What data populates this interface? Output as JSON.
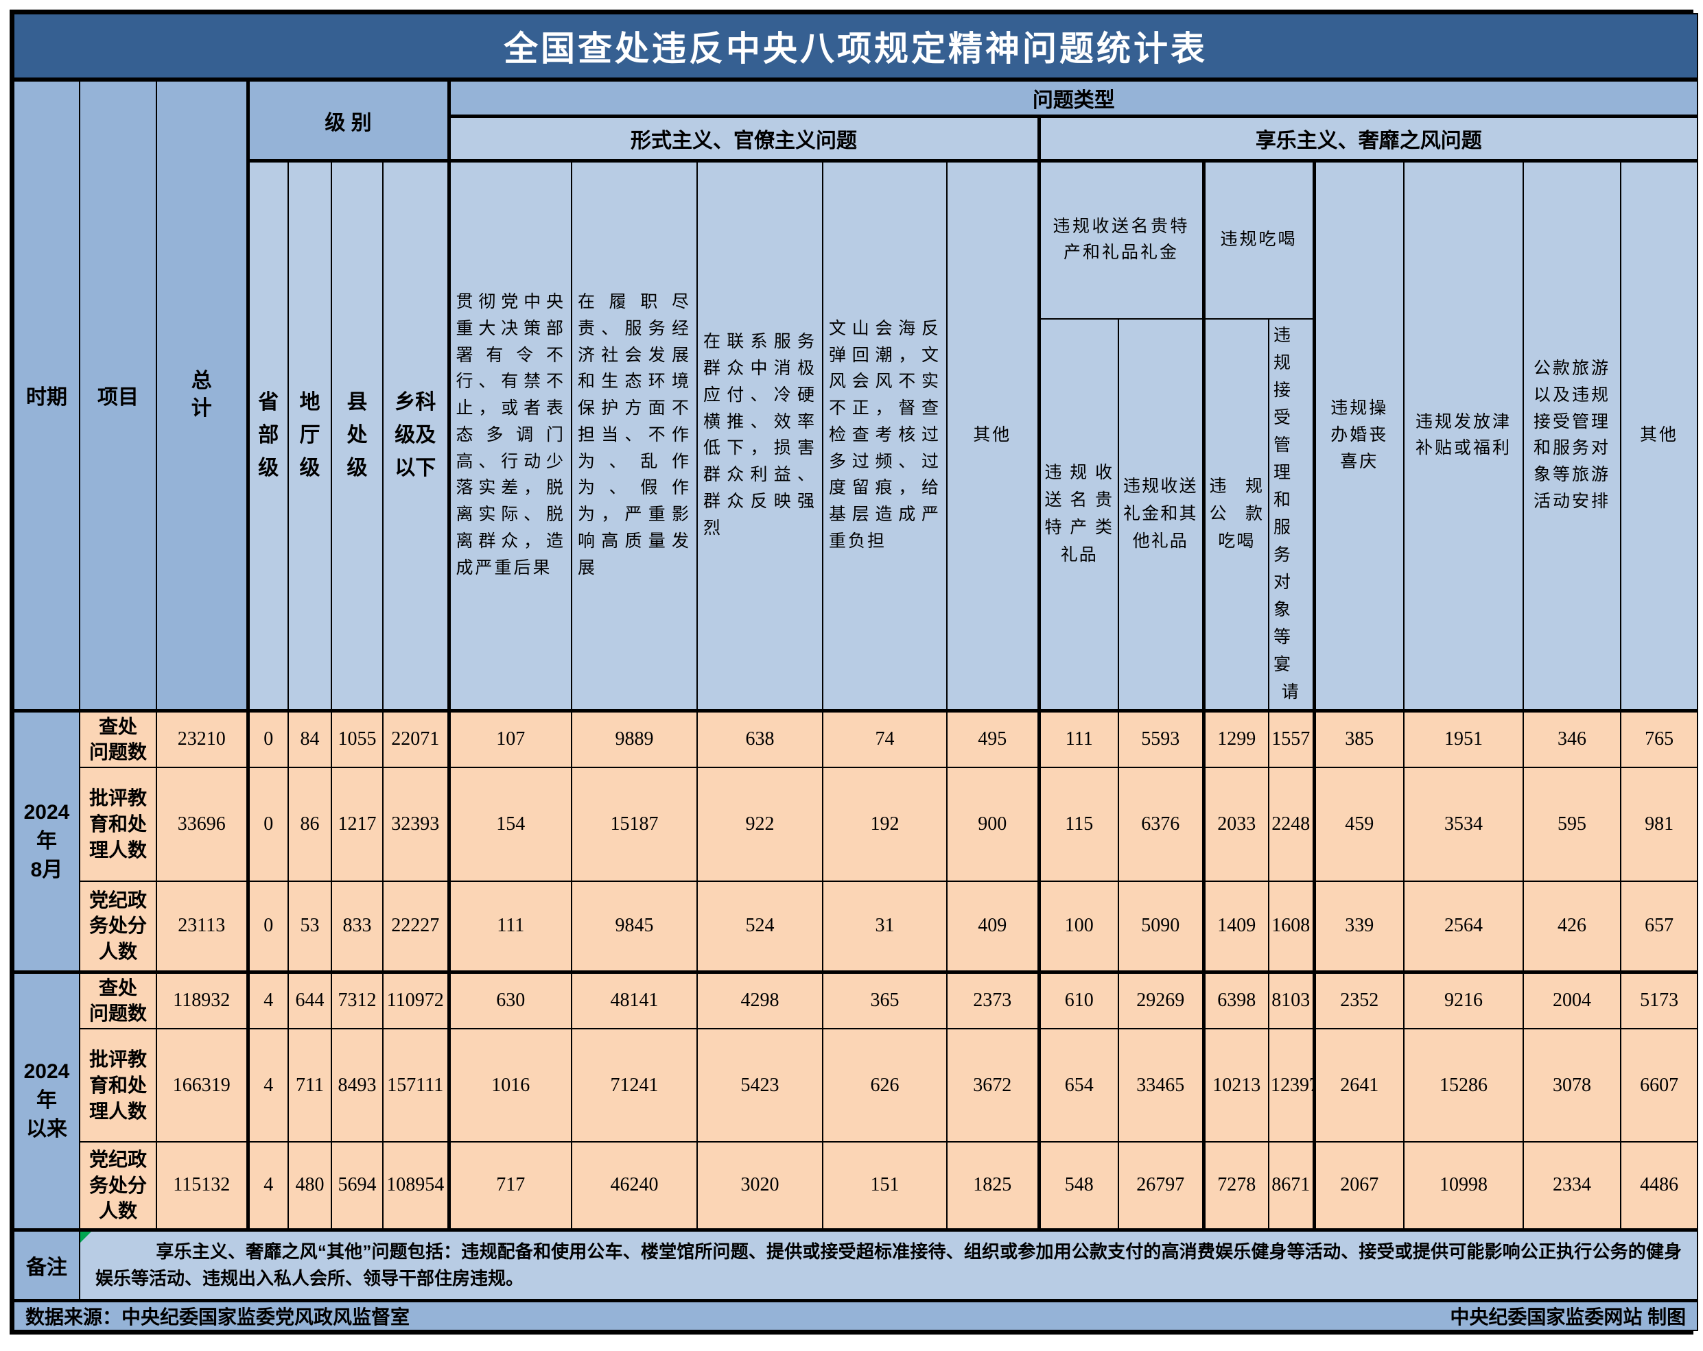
{
  "title": "全国查处违反中央八项规定精神问题统计表",
  "header": {
    "period": "时期",
    "item": "项目",
    "total": "总\n计",
    "level": "级 别",
    "problem_type": "问题类型",
    "group1": "形式主义、官僚主义问题",
    "group2": "享乐主义、奢靡之风问题",
    "levels": [
      "省\n部\n级",
      "地\n厅\n级",
      "县\n处\n级",
      "乡科\n级及\n以下"
    ],
    "g1cols": [
      "贯彻党中央重大决策部署有令不行、有禁不止，或者表态多调门高、行动少落实差，脱离实际、脱离群众，造成严重后果",
      "在履职尽责、服务经济社会发展和生态环境保护方面不担当、不作为、乱作为、假作为，严重影响高质量发展",
      "在联系服务群众中消极应付、冷硬横推、效率低下，损害群众利益、群众反映强烈",
      "文山会海反弹回潮，文风会风不实不正，督查检查考核过多过频、过度留痕，给基层造成严重负担",
      "其他"
    ],
    "g2top": [
      "违规收送名贵特产和礼品礼金",
      "违规吃喝"
    ],
    "g2sub": [
      "违规收送名贵特产类礼品",
      "违规收送礼金和其他礼品",
      "违规公款吃喝",
      "违规接受管理和服务对象等宴请"
    ],
    "g2cols": [
      "违规操办婚丧喜庆",
      "违规发放津补贴或福利",
      "公款旅游以及违规接受管理和服务对象等旅游活动安排",
      "其他"
    ]
  },
  "rows": [
    {
      "period": "2024年\n8月",
      "items": [
        {
          "label": "查处\n问题数",
          "values": [
            23210,
            0,
            84,
            1055,
            22071,
            107,
            9889,
            638,
            74,
            495,
            111,
            5593,
            1299,
            1557,
            385,
            1951,
            346,
            765
          ]
        },
        {
          "label": "批评教\n育和处\n理人数",
          "values": [
            33696,
            0,
            86,
            1217,
            32393,
            154,
            15187,
            922,
            192,
            900,
            115,
            6376,
            2033,
            2248,
            459,
            3534,
            595,
            981
          ]
        },
        {
          "label": "党纪政\n务处分\n人数",
          "values": [
            23113,
            0,
            53,
            833,
            22227,
            111,
            9845,
            524,
            31,
            409,
            100,
            5090,
            1409,
            1608,
            339,
            2564,
            426,
            657
          ]
        }
      ]
    },
    {
      "period": "2024年\n以来",
      "items": [
        {
          "label": "查处\n问题数",
          "values": [
            118932,
            4,
            644,
            7312,
            110972,
            630,
            48141,
            4298,
            365,
            2373,
            610,
            29269,
            6398,
            8103,
            2352,
            9216,
            2004,
            5173
          ]
        },
        {
          "label": "批评教\n育和处\n理人数",
          "values": [
            166319,
            4,
            711,
            8493,
            157111,
            1016,
            71241,
            5423,
            626,
            3672,
            654,
            33465,
            10213,
            12397,
            2641,
            15286,
            3078,
            6607
          ]
        },
        {
          "label": "党纪政\n务处分\n人数",
          "values": [
            115132,
            4,
            480,
            5694,
            108954,
            717,
            46240,
            3020,
            151,
            1825,
            548,
            26797,
            7278,
            8671,
            2067,
            10998,
            2334,
            4486
          ]
        }
      ]
    }
  ],
  "note": {
    "label": "备注",
    "text": "享乐主义、奢靡之风“其他”问题包括：违规配备和使用公车、楼堂馆所问题、提供或接受超标准接待、组织或参加用公款支付的高消费娱乐健身等活动、接受或提供可能影响公正执行公务的健身娱乐等活动、违规出入私人会所、领导干部住房违规。"
  },
  "footer": {
    "source": "数据来源：中央纪委国家监委党风政风监督室",
    "credit": "中央纪委国家监委网站 制图"
  },
  "colors": {
    "title_bg": "#366092",
    "title_text": "#FFFFFF",
    "header_mid": "#95B3D7",
    "header_light": "#B8CCE4",
    "data_bg": "#FBD5B5",
    "border": "#000000",
    "text": "#000000",
    "flag_green": "#00A550"
  }
}
